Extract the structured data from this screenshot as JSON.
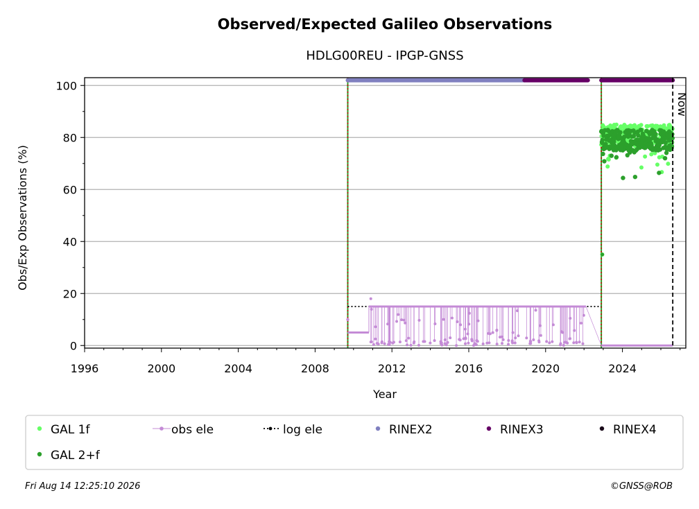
{
  "chart_data": {
    "type": "scatter",
    "title": "Observed/Expected Galileo Observations",
    "subtitle": "HDLG00REU - IPGP-GNSS",
    "xlabel": "Year",
    "ylabel": "Obs/Exp Observations (%)",
    "xlim": [
      1996,
      2027.3
    ],
    "ylim": [
      -1,
      103
    ],
    "x_ticks": [
      "1996",
      "2000",
      "2004",
      "2008",
      "2012",
      "2016",
      "2020",
      "2024"
    ],
    "y_ticks": [
      "0",
      "20",
      "40",
      "60",
      "80",
      "100"
    ],
    "grid": "horizontal",
    "legend_placement": "bottom",
    "now_label": "Now",
    "now_x": 2026.62,
    "event_lines_x": [
      2009.7,
      2022.9
    ],
    "series": [
      {
        "name": "GAL 1f",
        "color": "#66ff66",
        "segments": [
          {
            "x": [
              2022.9,
              2026.62
            ],
            "y_center": 81,
            "y_spread": 4
          }
        ]
      },
      {
        "name": "GAL 2+f",
        "color": "#2ca02c",
        "segments": [
          {
            "x": [
              2022.9,
              2026.62
            ],
            "y_center": 79,
            "y_spread": 4
          }
        ]
      },
      {
        "name": "obs ele",
        "color": "#c48bd6",
        "segments": [
          {
            "x": [
              2009.7,
              2010.8
            ],
            "y": 5
          },
          {
            "x": [
              2010.8,
              2022.1
            ],
            "y": 15
          }
        ]
      },
      {
        "name": "log ele",
        "color": "#000000",
        "segments": [
          {
            "x": [
              2009.7,
              2022.9
            ],
            "y": 15
          },
          {
            "x": [
              2022.9,
              2026.62
            ],
            "y": 0
          }
        ]
      },
      {
        "name": "RINEX2",
        "color": "#8080c0",
        "segments": [
          {
            "x": [
              2009.7,
              2018.9
            ],
            "y": 102
          }
        ]
      },
      {
        "name": "RINEX3",
        "color": "#660066",
        "segments": [
          {
            "x": [
              2018.9,
              2022.2
            ],
            "y": 102
          },
          {
            "x": [
              2022.9,
              2026.62
            ],
            "y": 102
          }
        ]
      },
      {
        "name": "RINEX4",
        "color": "#1a0a1a",
        "segments": []
      }
    ],
    "annotations": {
      "obs_outlier_y": 18,
      "gal_restart_y": 35
    }
  },
  "footer": {
    "date": "Fri Aug 14 12:25:10 2026",
    "credit": "©GNSS@ROB"
  }
}
